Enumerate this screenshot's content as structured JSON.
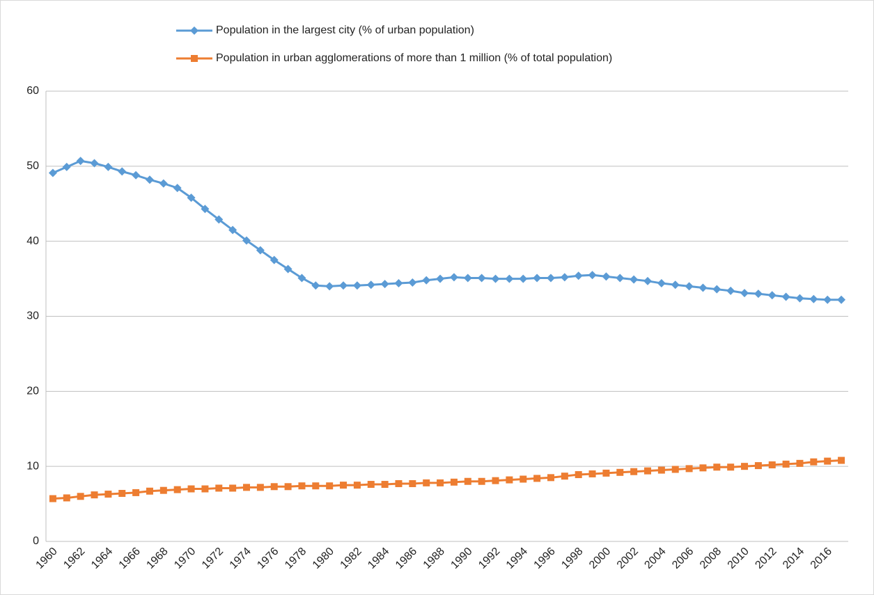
{
  "chart_data": {
    "type": "line",
    "categories": [
      "1960",
      null,
      "1962",
      null,
      "1964",
      null,
      "1966",
      null,
      "1968",
      null,
      "1970",
      null,
      "1972",
      null,
      "1974",
      null,
      "1976",
      null,
      "1978",
      null,
      "1980",
      null,
      "1982",
      null,
      "1984",
      null,
      "1986",
      null,
      "1988",
      null,
      "1990",
      null,
      "1992",
      null,
      "1994",
      null,
      "1996",
      null,
      "1998",
      null,
      "2000",
      null,
      "2002",
      null,
      "2004",
      null,
      "2006",
      null,
      "2008",
      null,
      "2010",
      null,
      "2012",
      null,
      "2014",
      null,
      "2016",
      null
    ],
    "series": [
      {
        "name": "Population in the largest city (% of urban population)",
        "color": "#5b9bd5",
        "marker": "diamond",
        "values": [
          49.1,
          49.9,
          50.7,
          50.4,
          49.9,
          49.3,
          48.8,
          48.2,
          47.7,
          47.1,
          45.8,
          44.3,
          42.9,
          41.5,
          40.1,
          38.8,
          37.5,
          36.3,
          35.1,
          34.1,
          34.0,
          34.1,
          34.1,
          34.2,
          34.3,
          34.4,
          34.5,
          34.8,
          35.0,
          35.2,
          35.1,
          35.1,
          35.0,
          35.0,
          35.0,
          35.1,
          35.1,
          35.2,
          35.4,
          35.5,
          35.3,
          35.1,
          34.9,
          34.7,
          34.4,
          34.2,
          34.0,
          33.8,
          33.6,
          33.4,
          33.1,
          33.0,
          32.8,
          32.6,
          32.4,
          32.3,
          32.2,
          32.2
        ]
      },
      {
        "name": "Population in urban agglomerations of more than 1 million (% of total population)",
        "color": "#ed7d31",
        "marker": "square",
        "values": [
          5.7,
          5.8,
          6.0,
          6.2,
          6.3,
          6.4,
          6.5,
          6.7,
          6.8,
          6.9,
          7.0,
          7.0,
          7.1,
          7.1,
          7.2,
          7.2,
          7.3,
          7.3,
          7.4,
          7.4,
          7.4,
          7.5,
          7.5,
          7.6,
          7.6,
          7.7,
          7.7,
          7.8,
          7.8,
          7.9,
          8.0,
          8.0,
          8.1,
          8.2,
          8.3,
          8.4,
          8.5,
          8.7,
          8.9,
          9.0,
          9.1,
          9.2,
          9.3,
          9.4,
          9.5,
          9.6,
          9.7,
          9.8,
          9.9,
          9.9,
          10.0,
          10.1,
          10.2,
          10.3,
          10.4,
          10.6,
          10.7,
          10.8
        ]
      }
    ],
    "ylim": [
      0,
      60
    ],
    "yticks": [
      0,
      10,
      20,
      30,
      40,
      50,
      60
    ],
    "grid": true,
    "legend": "top"
  }
}
